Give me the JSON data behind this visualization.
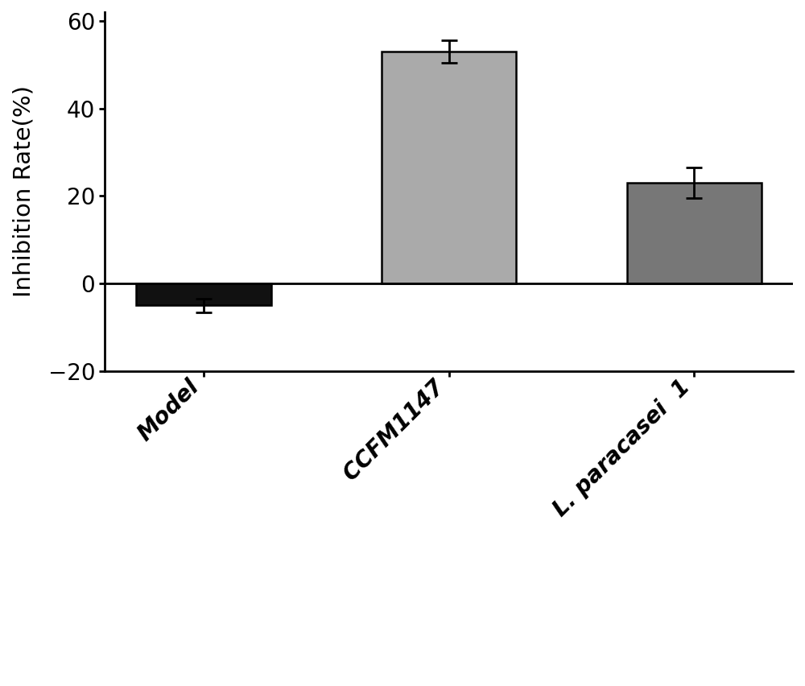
{
  "categories": [
    "Model",
    "CCFM1147",
    "L. paracasei  1"
  ],
  "values": [
    -5.0,
    53.0,
    23.0
  ],
  "errors": [
    1.5,
    2.5,
    3.5
  ],
  "bar_colors": [
    "#111111",
    "#aaaaaa",
    "#777777"
  ],
  "bar_edgecolors": [
    "#000000",
    "#000000",
    "#000000"
  ],
  "ylabel": "Inhibition Rate(%)",
  "ylim": [
    -20,
    62
  ],
  "yticks": [
    -20,
    0,
    20,
    40,
    60
  ],
  "bar_width": 0.55,
  "background_color": "#ffffff",
  "ylabel_fontsize": 21,
  "tick_fontsize": 20,
  "xlabel_fontsize": 20,
  "errorbar_capsize": 7,
  "errorbar_linewidth": 2.0,
  "errorbar_capthick": 2.0,
  "spine_linewidth": 2.0,
  "axhline_linewidth": 2.0
}
